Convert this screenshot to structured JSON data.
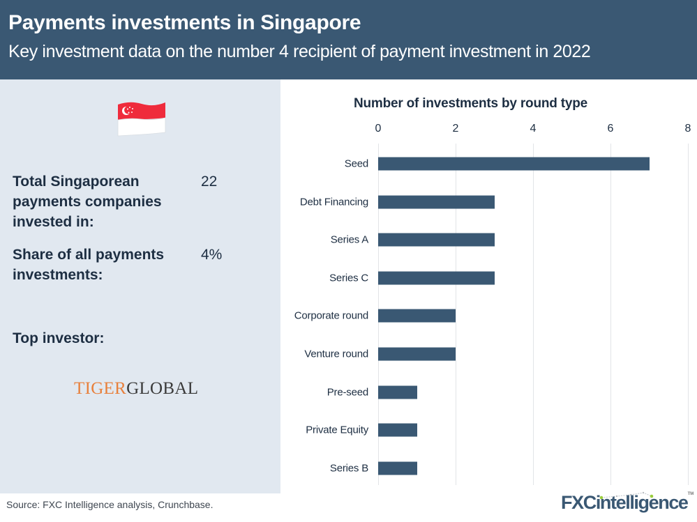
{
  "header": {
    "title": "Payments investments in Singapore",
    "subtitle": "Key investment data on the number 4 recipient of payment investment in 2022"
  },
  "left_panel": {
    "flag_icon": "singapore-flag",
    "stats": [
      {
        "label": "Total Singaporean payments companies invested in:",
        "value": "22"
      },
      {
        "label": "Share of all payments investments:",
        "value": "4%"
      }
    ],
    "top_investor_label": "Top investor:",
    "top_investor_logo": {
      "part1": "TIGER",
      "part2": "GLOBAL"
    }
  },
  "chart_data": {
    "type": "bar",
    "orientation": "horizontal",
    "title": "Number of investments by round type",
    "xlabel": "",
    "ylabel": "",
    "categories": [
      "Seed",
      "Debt Financing",
      "Series A",
      "Series C",
      "Corporate round",
      "Venture round",
      "Pre-seed",
      "Private Equity",
      "Series B"
    ],
    "values": [
      7,
      3,
      3,
      3,
      2,
      2,
      1,
      1,
      1
    ],
    "xlim": [
      0,
      8
    ],
    "x_ticks": [
      "0",
      "2",
      "4",
      "6",
      "8"
    ],
    "x_axis_position": "top",
    "grid": true,
    "legend": null,
    "bar_color": "#3a5873"
  },
  "footer": {
    "source": "Source: FXC Intelligence analysis, Crunchbase.",
    "brand": {
      "part1": "FXC",
      "part2": "intelligence",
      "tm": "TM"
    }
  },
  "colors": {
    "header_bg": "#3a5873",
    "panel_bg": "#e1e8f0",
    "accent_orange": "#e8803c",
    "brand_green": "#9acd3c"
  }
}
